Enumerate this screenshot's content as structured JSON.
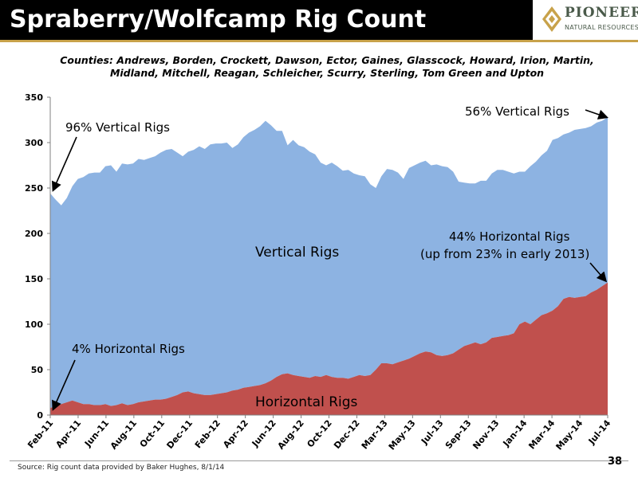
{
  "slide": {
    "title": "Spraberry/Wolfcamp Rig Count",
    "counties_line1": "Counties: Andrews, Borden, Crockett, Dawson, Ector, Gaines, Glasscock, Howard, Irion, Martin,",
    "counties_line2": "Midland, Mitchell, Reagan, Schleicher, Scurry, Sterling, Tom Green and Upton",
    "source": "Source: Rig count data provided by Baker Hughes, 8/1/14",
    "page_number": "38",
    "logo_text": "PIONEER",
    "logo_subtext": "NATURAL RESOURCES"
  },
  "colors": {
    "vertical_fill": "#8db3e2",
    "horizontal_fill": "#c0504d",
    "plot_background": "#ffffff",
    "gold_accent": "#c8a24a"
  },
  "chart_data": {
    "type": "area",
    "stacked": true,
    "y_ticks": [
      "0",
      "50",
      "100",
      "150",
      "200",
      "250",
      "300",
      "350"
    ],
    "ylim": [
      0,
      350
    ],
    "x_tick_labels": [
      "Feb-11",
      "Apr-11",
      "Jun-11",
      "Aug-11",
      "Oct-11",
      "Dec-11",
      "Feb-12",
      "Apr-12",
      "Jun-12",
      "Aug-12",
      "Oct-12",
      "Dec-12",
      "Mar-13",
      "May-13",
      "Jul-13",
      "Sep-13",
      "Nov-13",
      "Jan-14",
      "Mar-14",
      "May-14",
      "Jul-14"
    ],
    "series": [
      {
        "name": "Horizontal Rigs",
        "values": [
          8,
          9,
          12,
          14,
          16,
          14,
          12,
          12,
          11,
          11,
          12,
          10,
          11,
          13,
          11,
          12,
          14,
          15,
          16,
          17,
          17,
          18,
          20,
          22,
          25,
          26,
          24,
          23,
          22,
          22,
          23,
          24,
          25,
          27,
          28,
          30,
          31,
          32,
          33,
          35,
          38,
          42,
          45,
          46,
          44,
          43,
          42,
          41,
          43,
          42,
          44,
          42,
          41,
          41,
          40,
          42,
          44,
          43,
          44,
          50,
          57,
          57,
          56,
          58,
          60,
          62,
          65,
          68,
          70,
          69,
          66,
          65,
          66,
          68,
          72,
          76,
          78,
          80,
          78,
          80,
          85,
          86,
          87,
          88,
          90,
          100,
          103,
          100,
          105,
          110,
          112,
          115,
          120,
          128,
          130,
          129,
          130,
          131,
          135,
          138,
          142,
          146
        ]
      },
      {
        "name": "Vertical Rigs",
        "values": [
          236,
          228,
          219,
          225,
          236,
          246,
          250,
          254,
          256,
          256,
          262,
          265,
          257,
          264,
          265,
          265,
          268,
          266,
          267,
          268,
          272,
          274,
          273,
          267,
          260,
          264,
          268,
          273,
          271,
          276,
          276,
          275,
          275,
          267,
          270,
          276,
          280,
          282,
          285,
          289,
          281,
          271,
          268,
          251,
          259,
          254,
          253,
          249,
          244,
          236,
          231,
          236,
          233,
          228,
          230,
          224,
          220,
          220,
          210,
          200,
          206,
          214,
          214,
          209,
          200,
          210,
          210,
          210,
          210,
          206,
          210,
          209,
          207,
          200,
          185,
          180,
          177,
          175,
          180,
          178,
          181,
          184,
          183,
          180,
          176,
          168,
          165,
          174,
          174,
          176,
          179,
          188,
          185,
          181,
          181,
          185,
          185,
          185,
          183,
          184,
          182,
          182
        ]
      }
    ],
    "annotations": [
      "96% Vertical Rigs",
      "56% Vertical Rigs",
      "Vertical Rigs",
      "44% Horizontal Rigs",
      "(up from 23% in early 2013)",
      "4% Horizontal Rigs",
      "Horizontal Rigs"
    ]
  }
}
